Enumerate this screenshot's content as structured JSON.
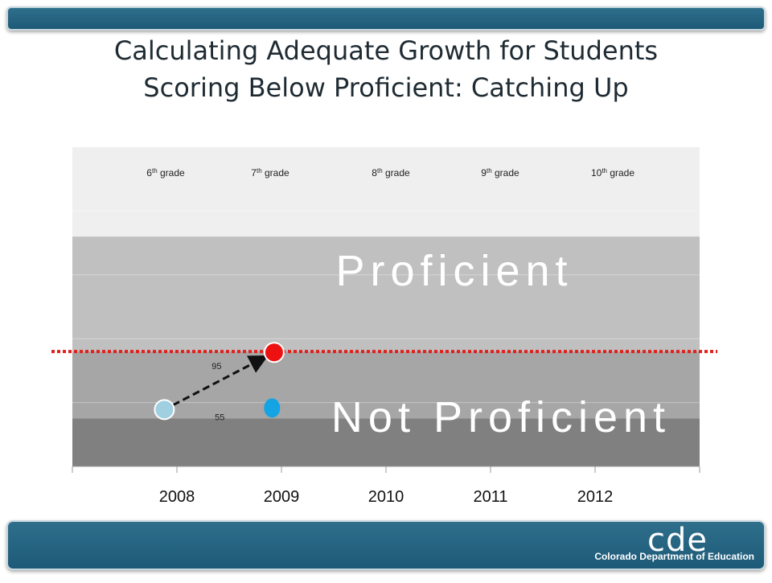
{
  "slide": {
    "title_line1": "Calculating Adequate Growth for Students",
    "title_line2": "Scoring Below Proficient: Catching Up"
  },
  "logo": {
    "mark": "cde",
    "text": "Colorado Department of Education"
  },
  "colors": {
    "banner": "#1d5a78",
    "proficient_band": "#c0c0c0",
    "upper_band": "#efefef",
    "not_proficient_band": "#a6a6a6",
    "bottom_band": "#808080",
    "threshold": "#e0201b",
    "start_point": "#9fcfe0",
    "target_point": "#ee1111",
    "actual_point": "#14a3e3"
  },
  "chart_data": {
    "type": "scatter",
    "categories": [
      "2008",
      "2009",
      "2010",
      "2011",
      "2012"
    ],
    "grades": [
      {
        "pre": "6",
        "sup": "th",
        "post": " grade"
      },
      {
        "pre": "7",
        "sup": "th",
        "post": " grade"
      },
      {
        "pre": "8",
        "sup": "th",
        "post": " grade"
      },
      {
        "pre": "9",
        "sup": "th",
        "post": " grade"
      },
      {
        "pre": "10",
        "sup": "th",
        "post": " grade"
      }
    ],
    "bands": {
      "proficient_label": "Proficient",
      "not_proficient_label": "Not Proficient"
    },
    "points": [
      {
        "name": "start",
        "year_index": -0.12,
        "level": 1.78
      },
      {
        "name": "target",
        "year_index": 0.93,
        "level": 3.57
      },
      {
        "name": "actual",
        "year_index": 0.91,
        "level": 1.83
      }
    ],
    "annotations": [
      {
        "text": "95",
        "year_index": 0.38,
        "level": 3.05
      },
      {
        "text": "55",
        "year_index": 0.41,
        "level": 1.45
      }
    ],
    "growth_arrow": {
      "from": "start",
      "to": "target"
    },
    "proficiency_cut": 3.6,
    "band_edges": {
      "bottom_band_top": 1.5,
      "proficient_bottom": 3.6,
      "proficient_top": 7.2
    },
    "ylim": [
      0,
      10
    ],
    "grid": true
  }
}
